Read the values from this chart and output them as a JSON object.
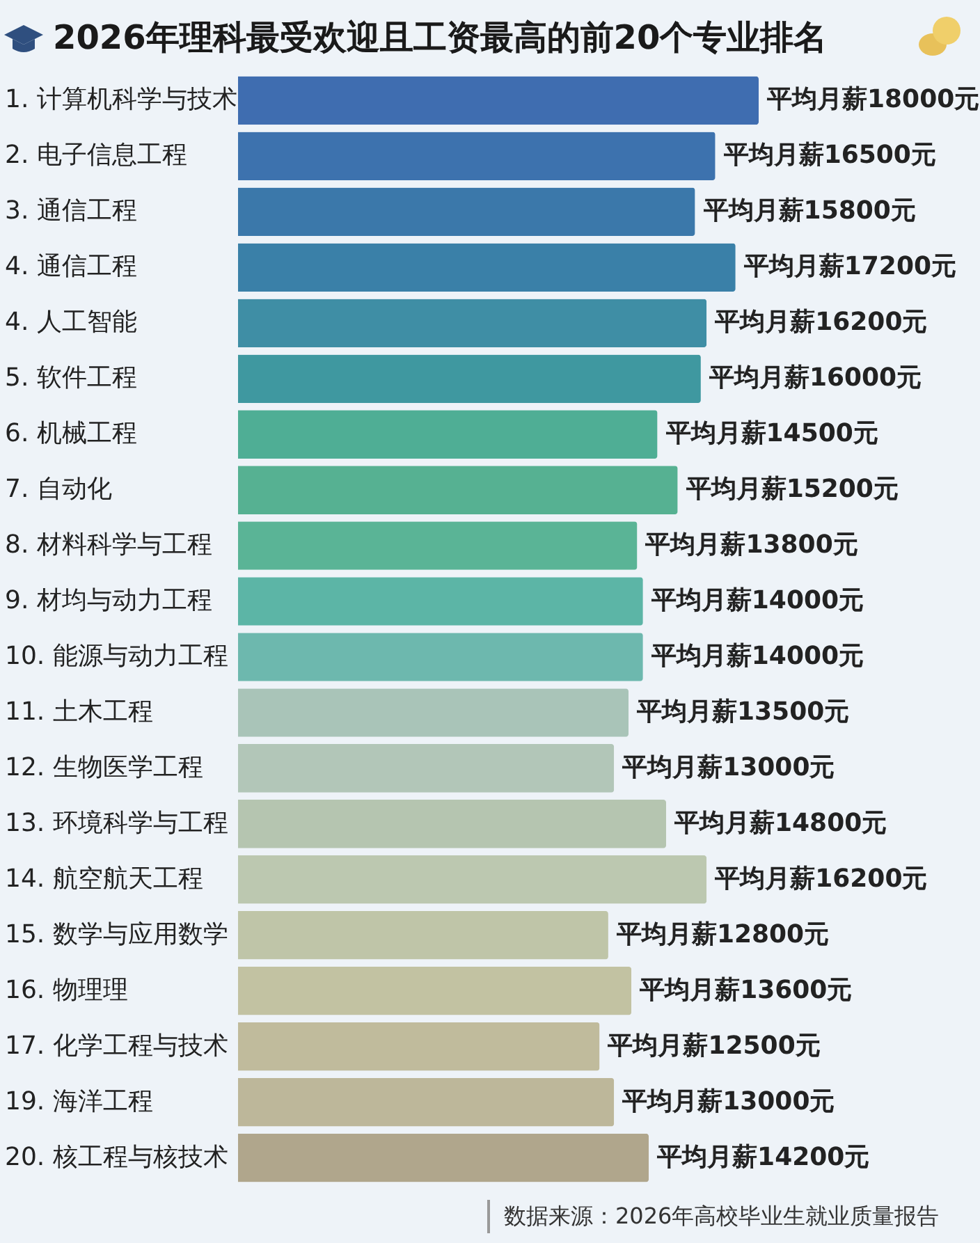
{
  "chart_data": {
    "type": "bar",
    "orientation": "horizontal",
    "title": "2026年理科最受欢迎且工资最高的前20个专业排名",
    "categories": [
      "1. 计算机科学与技术",
      "2. 电子信息工程",
      "3. 通信工程",
      "4. 通信工程",
      "4. 人工智能",
      "5. 软件工程",
      "6. 机械工程",
      "7. 自动化",
      "8. 材料科学与工程",
      "9. 材均与动力工程",
      "10. 能源与动力工程",
      "11. 土木工程",
      "12. 生物医学工程",
      "13. 环境科学与工程",
      "14. 航空航天工程",
      "15. 数学与应用数学",
      "16. 物理理",
      "17. 化学工程与技术",
      "19. 海洋工程",
      "20. 核工程与核技术"
    ],
    "values": [
      18000,
      16500,
      15800,
      17200,
      16200,
      16000,
      14500,
      15200,
      13800,
      14000,
      14000,
      13500,
      13000,
      14800,
      16200,
      12800,
      13600,
      12500,
      13000,
      14200
    ],
    "colors": [
      "#3f6db0",
      "#3d72ae",
      "#3b78aa",
      "#3a80a8",
      "#3f8ea5",
      "#3f98a0",
      "#4fae95",
      "#56b192",
      "#5ab496",
      "#5cb5a6",
      "#6db8ae",
      "#a9c4b8",
      "#b2c6b8",
      "#b5c5b0",
      "#bcc8b0",
      "#bfc5a8",
      "#c2c2a2",
      "#c0bb9c",
      "#bdb79a",
      "#b0a68c"
    ],
    "value_labels": [
      "平均月薪18000元",
      "平均月薪16500元",
      "平均月薪15800元",
      "平均月薪17200元",
      "平均月薪16200元",
      "平均月薪16000元",
      "平均月薪14500元",
      "平均月薪15200元",
      "平均月薪13800元",
      "平均月薪14000元",
      "平均月薪14000元",
      "平均月薪13500元",
      "平均月薪13000元",
      "平均月薪14800元",
      "平均月薪16200元",
      "平均月薪12800元",
      "平均月薪13600元",
      "平均月薪12500元",
      "平均月薪13000元",
      "平均月薪14200元"
    ],
    "annotations": [
      "数据来源：2026年高校毕业生就业质量报告"
    ]
  }
}
